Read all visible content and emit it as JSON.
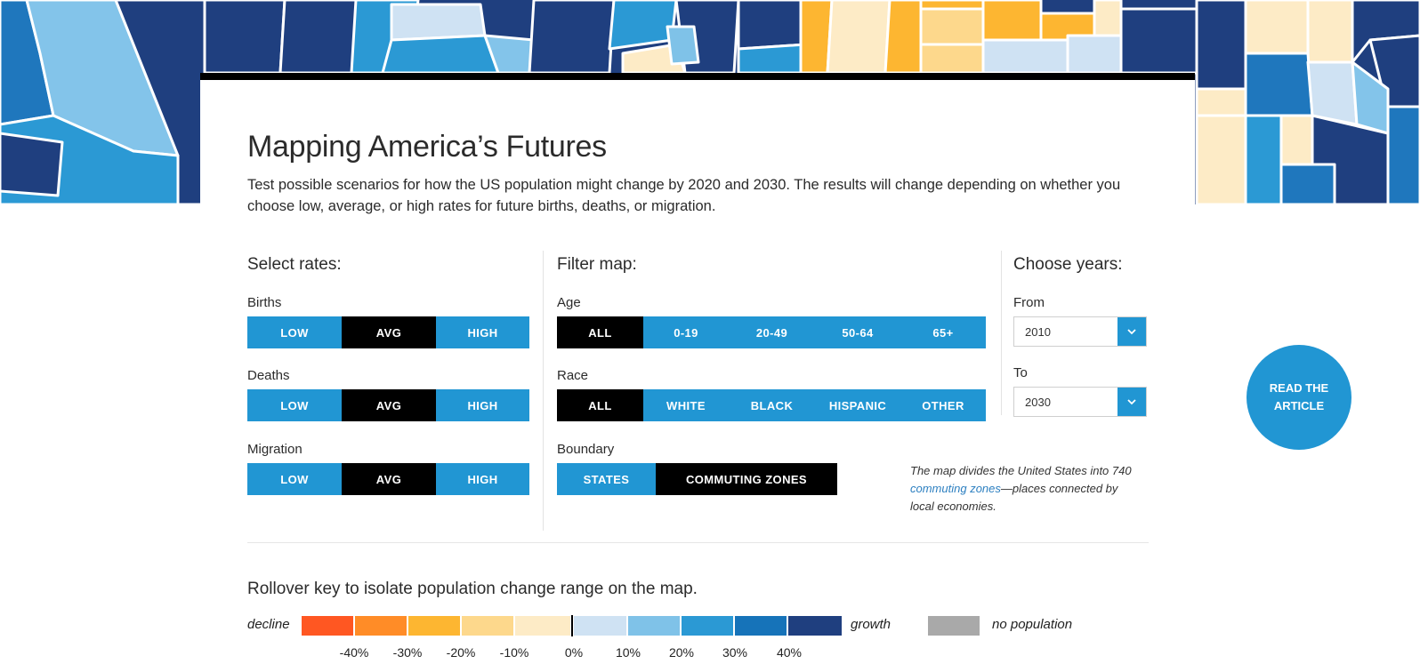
{
  "header": {
    "title": "Mapping America’s Futures",
    "intro": "Test possible scenarios for how the US population might change by 2020 and 2030. The results will change depending on whether you choose low, average, or high rates for future births, deaths, or migration."
  },
  "rates": {
    "heading": "Select rates:",
    "births": {
      "label": "Births",
      "options": [
        "LOW",
        "AVG",
        "HIGH"
      ],
      "selected": "AVG"
    },
    "deaths": {
      "label": "Deaths",
      "options": [
        "LOW",
        "AVG",
        "HIGH"
      ],
      "selected": "AVG"
    },
    "migration": {
      "label": "Migration",
      "options": [
        "LOW",
        "AVG",
        "HIGH"
      ],
      "selected": "AVG"
    }
  },
  "filter": {
    "heading": "Filter map:",
    "age": {
      "label": "Age",
      "options": [
        "ALL",
        "0-19",
        "20-49",
        "50-64",
        "65+"
      ],
      "selected": "ALL"
    },
    "race": {
      "label": "Race",
      "options": [
        "ALL",
        "WHITE",
        "BLACK",
        "HISPANIC",
        "OTHER"
      ],
      "selected": "ALL"
    },
    "boundary": {
      "label": "Boundary",
      "options": [
        "STATES",
        "COMMUTING ZONES"
      ],
      "selected": "COMMUTING ZONES"
    }
  },
  "years": {
    "heading": "Choose years:",
    "from": {
      "label": "From",
      "value": "2010"
    },
    "to": {
      "label": "To",
      "value": "2030"
    }
  },
  "note": {
    "before": "The map divides the United States into 740 ",
    "link": "commuting zones",
    "after": "—places connected by local economies."
  },
  "key": {
    "title": "Rollover key to isolate population change range on the map.",
    "decline_label": "decline",
    "growth_label": "growth",
    "no_population_label": "no population",
    "decline_colors": [
      "#ff5722",
      "#ff8c27",
      "#fdb631",
      "#fdd88c",
      "#fdebc6"
    ],
    "growth_colors": [
      "#cfe2f3",
      "#7fc2e8",
      "#2b99d4",
      "#1673b9",
      "#1f3f7f"
    ],
    "no_population_color": "#a9a9a9",
    "ticks": [
      "-40%",
      "-30%",
      "-20%",
      "-10%",
      "0%",
      "10%",
      "20%",
      "30%",
      "40%"
    ]
  },
  "cta": {
    "label": "READ THE ARTICLE"
  },
  "colors": {
    "accent": "#2196d3",
    "active": "#000000"
  }
}
